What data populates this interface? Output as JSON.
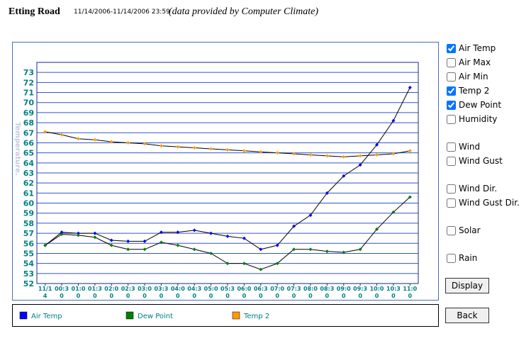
{
  "header": {
    "title": "Etting Road",
    "date_range": "11/14/2006-11/14/2006 23:59",
    "credit": "(data provided by Computer Climate)"
  },
  "chart_data": {
    "type": "line",
    "y_label": "Temperature.",
    "categories": [
      "11/14",
      "00:30",
      "01:00",
      "01:30",
      "02:00",
      "02:30",
      "03:00",
      "03:30",
      "04:00",
      "04:30",
      "05:00",
      "05:30",
      "06:00",
      "06:30",
      "07:00",
      "07:30",
      "08:00",
      "08:30",
      "09:00",
      "09:30",
      "10:00",
      "10:30",
      "11:00"
    ],
    "series": [
      {
        "name": "Air Temp",
        "color": "#0000ff",
        "values": [
          55.8,
          57.1,
          57.0,
          57.0,
          56.3,
          56.2,
          56.2,
          57.1,
          57.1,
          57.3,
          57.0,
          56.7,
          56.5,
          55.4,
          55.8,
          57.7,
          58.8,
          61.0,
          62.7,
          63.8,
          65.8,
          68.2,
          71.5
        ]
      },
      {
        "name": "Dew Point",
        "color": "#008000",
        "values": [
          55.8,
          56.9,
          56.8,
          56.6,
          55.8,
          55.4,
          55.4,
          56.1,
          55.8,
          55.4,
          55.0,
          54.0,
          54.0,
          53.4,
          54.0,
          55.4,
          55.4,
          55.2,
          55.1,
          55.4,
          57.4,
          59.1,
          60.6
        ]
      },
      {
        "name": "Temp 2",
        "color": "#ff9900",
        "values": [
          67.1,
          66.8,
          66.4,
          66.3,
          66.1,
          66.0,
          65.9,
          65.7,
          65.6,
          65.5,
          65.4,
          65.3,
          65.2,
          65.1,
          65.0,
          64.9,
          64.8,
          64.7,
          64.6,
          64.7,
          64.8,
          64.9,
          65.2
        ]
      }
    ],
    "ylim": [
      52,
      74
    ],
    "yticks": [
      52,
      53,
      54,
      55,
      56,
      57,
      58,
      59,
      60,
      61,
      62,
      63,
      64,
      65,
      66,
      67,
      68,
      69,
      70,
      71,
      72,
      73
    ],
    "grid": true
  },
  "controls": {
    "checkboxes": [
      {
        "label": "Air Temp",
        "checked": true
      },
      {
        "label": "Air Max",
        "checked": false
      },
      {
        "label": "Air Min",
        "checked": false
      },
      {
        "label": "Temp 2",
        "checked": true
      },
      {
        "label": "Dew Point",
        "checked": true
      },
      {
        "label": "Humidity",
        "checked": false
      },
      {
        "label": "Wind",
        "checked": false
      },
      {
        "label": "Wind Gust",
        "checked": false
      },
      {
        "label": "Wind Dir.",
        "checked": false
      },
      {
        "label": "Wind Gust Dir.",
        "checked": false
      },
      {
        "label": "Solar",
        "checked": false
      },
      {
        "label": "Rain",
        "checked": false
      }
    ],
    "buttons": [
      "Display",
      "Back"
    ]
  }
}
